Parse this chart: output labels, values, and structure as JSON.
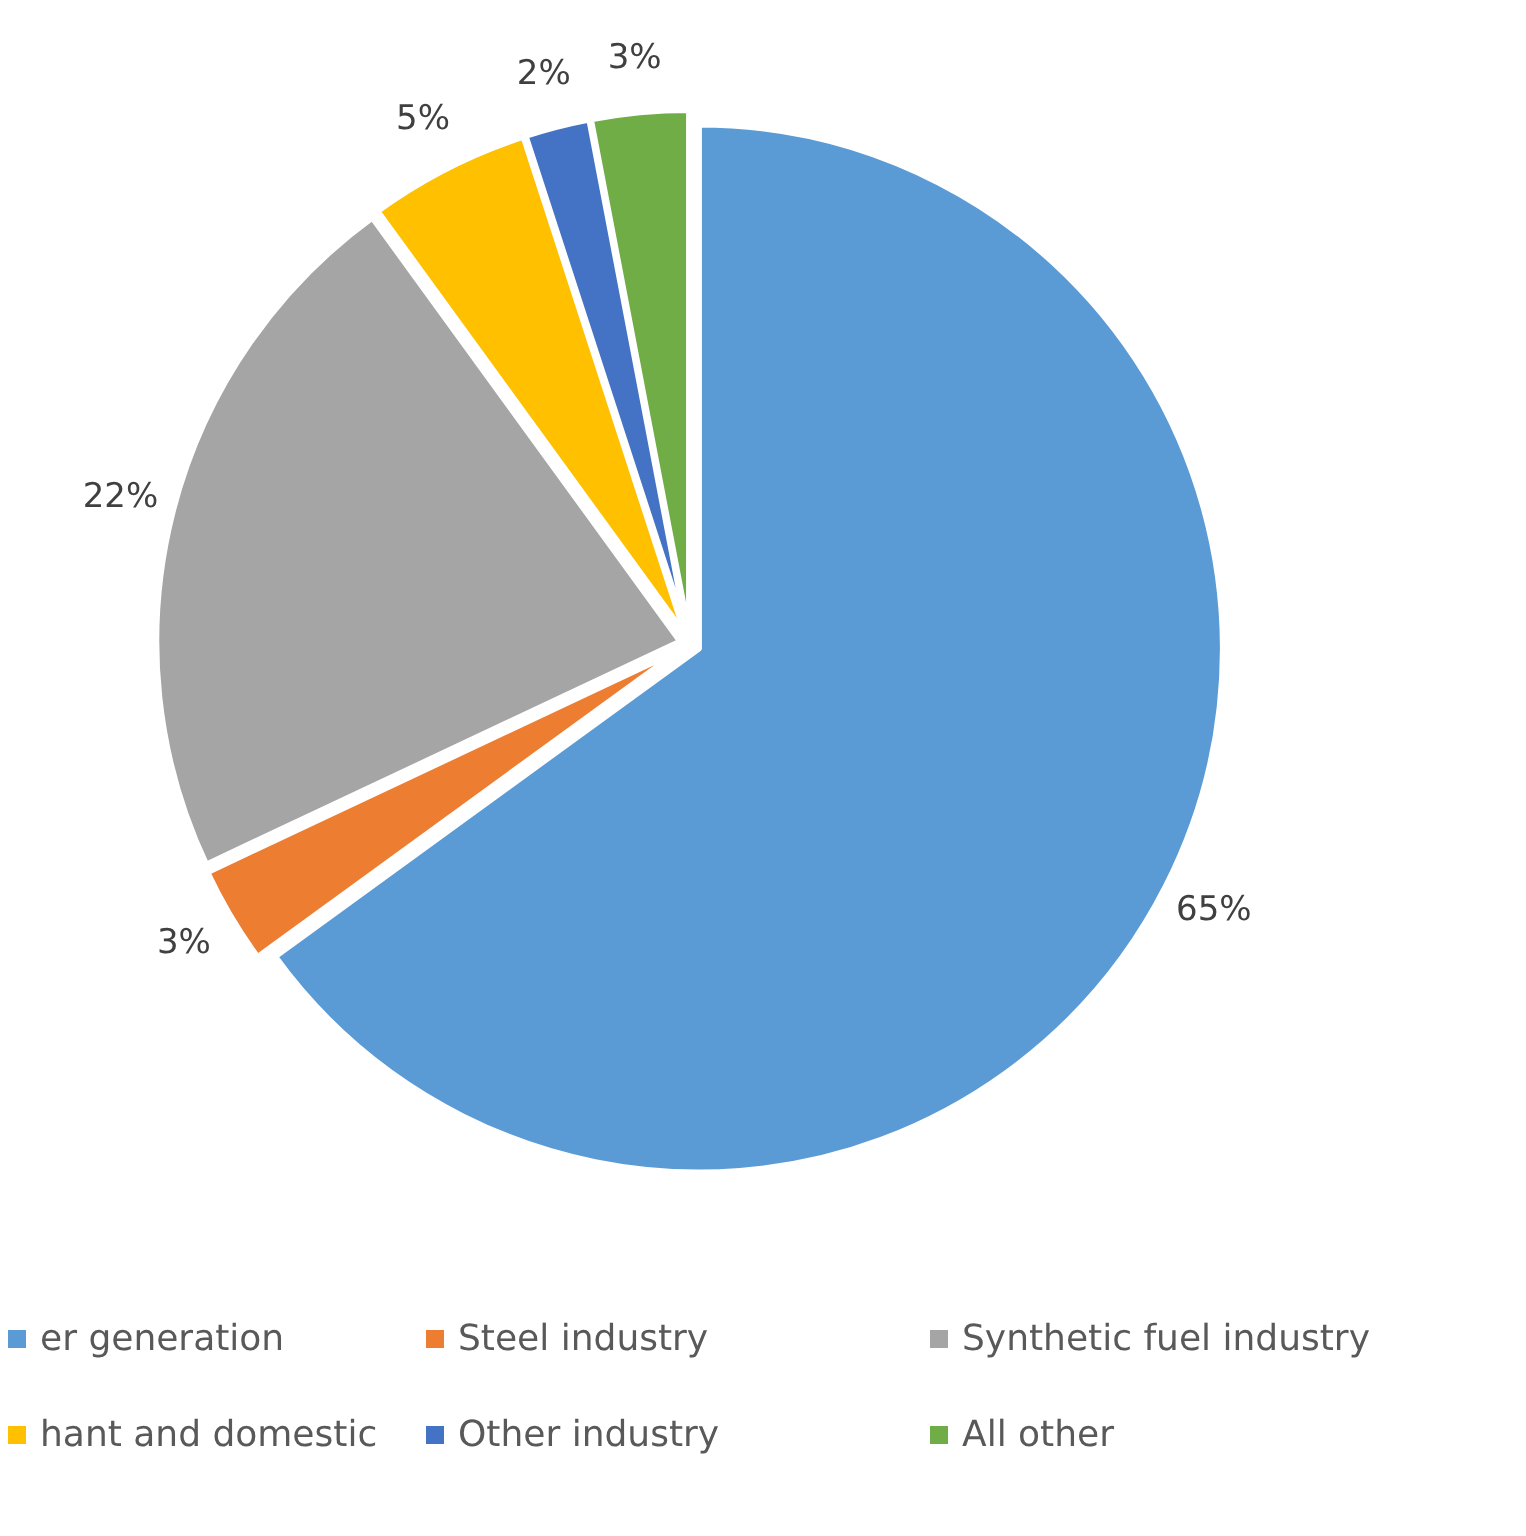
{
  "chart_data": {
    "type": "pie",
    "categories": [
      "er generation",
      "Steel industry",
      "Synthetic fuel industry",
      "hant and domestic",
      "Other industry",
      "All other"
    ],
    "values": [
      65,
      3,
      22,
      5,
      2,
      3
    ],
    "colors": [
      "#5b9bd5",
      "#ed7d31",
      "#a5a5a5",
      "#ffc000",
      "#4472c4",
      "#70ad47"
    ],
    "value_labels": [
      "65%",
      "3%",
      "22%",
      "5%",
      "2%",
      "3%"
    ],
    "legend": "bottom"
  }
}
